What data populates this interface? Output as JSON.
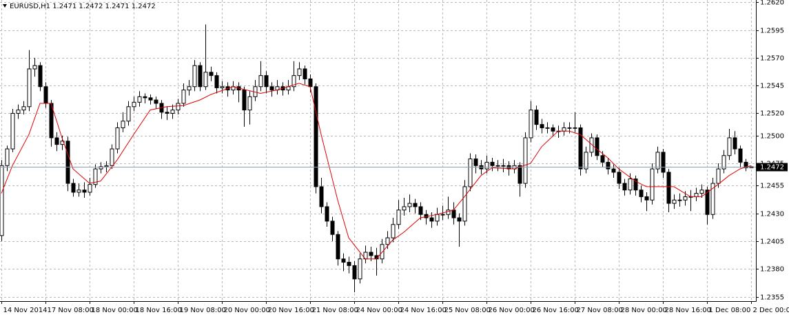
{
  "chart_data": {
    "type": "candlestick",
    "title": "EURUSD,H1  1.2471 1.2472 1.2471 1.2472",
    "up_color": "#ffffff",
    "down_color": "#000000",
    "wick_color": "#000000",
    "ma_color": "#e00000",
    "grid": true,
    "ylim": [
      1.2351,
      1.2622
    ],
    "yticks": [
      {
        "value": 1.262,
        "label": "1.2620"
      },
      {
        "value": 1.2595,
        "label": "1.2595"
      },
      {
        "value": 1.257,
        "label": "1.2570"
      },
      {
        "value": 1.2545,
        "label": "1.2545"
      },
      {
        "value": 1.252,
        "label": "1.2520"
      },
      {
        "value": 1.25,
        "label": "1.2500"
      },
      {
        "value": 1.2475,
        "label": "1.2475"
      },
      {
        "value": 1.2455,
        "label": "1.2455"
      },
      {
        "value": 1.243,
        "label": "1.2430"
      },
      {
        "value": 1.2405,
        "label": "1.2405"
      },
      {
        "value": 1.238,
        "label": "1.2380"
      },
      {
        "value": 1.2355,
        "label": "1.2355"
      }
    ],
    "current_price": {
      "value": 1.2472,
      "label": "1.2472"
    },
    "xlim": [
      -0.25,
      136.875
    ],
    "xticks": [
      {
        "value": 0,
        "label": "14 Nov 2014"
      },
      {
        "value": 8,
        "label": "17 Nov 08:00"
      },
      {
        "value": 16,
        "label": "18 Nov 00:00"
      },
      {
        "value": 24,
        "label": "18 Nov 16:00"
      },
      {
        "value": 32,
        "label": "19 Nov 08:00"
      },
      {
        "value": 40,
        "label": "20 Nov 00:00"
      },
      {
        "value": 48,
        "label": "20 Nov 16:00"
      },
      {
        "value": 56,
        "label": "21 Nov 08:00"
      },
      {
        "value": 64,
        "label": "24 Nov 00:00"
      },
      {
        "value": 72,
        "label": "24 Nov 16:00"
      },
      {
        "value": 80,
        "label": "25 Nov 08:00"
      },
      {
        "value": 88,
        "label": "26 Nov 00:00"
      },
      {
        "value": 96,
        "label": "26 Nov 16:00"
      },
      {
        "value": 104,
        "label": "27 Nov 08:00"
      },
      {
        "value": 112,
        "label": "28 Nov 00:00"
      },
      {
        "value": 120,
        "label": "28 Nov 16:00"
      },
      {
        "value": 128,
        "label": "1 Dec 08:00"
      },
      {
        "value": 136,
        "label": "2 Dec 00:00"
      }
    ],
    "candles": [
      [
        1.241,
        1.2478,
        1.2405,
        1.2473
      ],
      [
        1.2473,
        1.2491,
        1.2468,
        1.2488
      ],
      [
        1.2488,
        1.2524,
        1.2485,
        1.252
      ],
      [
        1.252,
        1.2528,
        1.2515,
        1.2523
      ],
      [
        1.2523,
        1.2531,
        1.2519,
        1.2526
      ],
      [
        1.2526,
        1.2577,
        1.2522,
        1.256
      ],
      [
        1.256,
        1.257,
        1.2553,
        1.2563
      ],
      [
        1.2563,
        1.2566,
        1.254,
        1.2544
      ],
      [
        1.2544,
        1.2548,
        1.2525,
        1.2529
      ],
      [
        1.2529,
        1.2532,
        1.249,
        1.2498
      ],
      [
        1.2498,
        1.2503,
        1.2486,
        1.2492
      ],
      [
        1.2492,
        1.25,
        1.2487,
        1.2495
      ],
      [
        1.2495,
        1.2499,
        1.245,
        1.2457
      ],
      [
        1.2457,
        1.2461,
        1.2445,
        1.2449
      ],
      [
        1.2449,
        1.2457,
        1.2445,
        1.2451
      ],
      [
        1.2451,
        1.2458,
        1.2444,
        1.2449
      ],
      [
        1.2449,
        1.2462,
        1.2446,
        1.2456
      ],
      [
        1.2456,
        1.2474,
        1.2453,
        1.247
      ],
      [
        1.247,
        1.2476,
        1.2466,
        1.2472
      ],
      [
        1.2472,
        1.2477,
        1.2467,
        1.2473
      ],
      [
        1.2473,
        1.2492,
        1.247,
        1.2488
      ],
      [
        1.2488,
        1.2512,
        1.2484,
        1.2507
      ],
      [
        1.2507,
        1.2521,
        1.2503,
        1.2513
      ],
      [
        1.2513,
        1.2531,
        1.2509,
        1.2526
      ],
      [
        1.2526,
        1.2535,
        1.2522,
        1.253
      ],
      [
        1.253,
        1.254,
        1.2526,
        1.2535
      ],
      [
        1.2535,
        1.2538,
        1.2529,
        1.2534
      ],
      [
        1.2534,
        1.2537,
        1.2528,
        1.2532
      ],
      [
        1.2532,
        1.2535,
        1.2524,
        1.2529
      ],
      [
        1.2529,
        1.2532,
        1.2515,
        1.2521
      ],
      [
        1.2521,
        1.2526,
        1.2514,
        1.252
      ],
      [
        1.252,
        1.2528,
        1.2515,
        1.2523
      ],
      [
        1.2523,
        1.2533,
        1.2519,
        1.2529
      ],
      [
        1.2529,
        1.2547,
        1.2526,
        1.2541
      ],
      [
        1.2541,
        1.255,
        1.2536,
        1.2544
      ],
      [
        1.2544,
        1.2568,
        1.254,
        1.2563
      ],
      [
        1.2563,
        1.2566,
        1.254,
        1.2544
      ],
      [
        1.2544,
        1.26,
        1.2541,
        1.2557
      ],
      [
        1.2557,
        1.2562,
        1.2549,
        1.2554
      ],
      [
        1.2554,
        1.2557,
        1.2538,
        1.2543
      ],
      [
        1.2543,
        1.2549,
        1.2538,
        1.2544
      ],
      [
        1.2544,
        1.2548,
        1.2535,
        1.2541
      ],
      [
        1.2541,
        1.2549,
        1.2537,
        1.2544
      ],
      [
        1.2544,
        1.2548,
        1.253,
        1.2541
      ],
      [
        1.2541,
        1.2544,
        1.2508,
        1.2523
      ],
      [
        1.2523,
        1.254,
        1.251,
        1.2535
      ],
      [
        1.2535,
        1.255,
        1.2531,
        1.2544
      ],
      [
        1.2544,
        1.2567,
        1.254,
        1.2554
      ],
      [
        1.2554,
        1.2558,
        1.2538,
        1.2544
      ],
      [
        1.2544,
        1.2548,
        1.2535,
        1.2541
      ],
      [
        1.2541,
        1.255,
        1.2537,
        1.2544
      ],
      [
        1.2544,
        1.2548,
        1.2536,
        1.2541
      ],
      [
        1.2541,
        1.255,
        1.2537,
        1.2544
      ],
      [
        1.2544,
        1.2567,
        1.254,
        1.2554
      ],
      [
        1.2554,
        1.2566,
        1.255,
        1.256
      ],
      [
        1.256,
        1.2563,
        1.2546,
        1.2551
      ],
      [
        1.2551,
        1.2555,
        1.2539,
        1.2544
      ],
      [
        1.2544,
        1.2547,
        1.2448,
        1.2454
      ],
      [
        1.2454,
        1.2462,
        1.243,
        1.2436
      ],
      [
        1.2436,
        1.244,
        1.2418,
        1.2423
      ],
      [
        1.2423,
        1.2427,
        1.2405,
        1.2411
      ],
      [
        1.2411,
        1.2414,
        1.2383,
        1.2389
      ],
      [
        1.2389,
        1.2394,
        1.2378,
        1.2386
      ],
      [
        1.2386,
        1.2391,
        1.2376,
        1.2383
      ],
      [
        1.2383,
        1.2387,
        1.2359,
        1.2371
      ],
      [
        1.2371,
        1.2394,
        1.2367,
        1.2389
      ],
      [
        1.2389,
        1.2401,
        1.2385,
        1.2395
      ],
      [
        1.2395,
        1.24,
        1.2387,
        1.2392
      ],
      [
        1.2392,
        1.2399,
        1.2374,
        1.2389
      ],
      [
        1.2389,
        1.2407,
        1.2385,
        1.2402
      ],
      [
        1.2402,
        1.2414,
        1.2398,
        1.2408
      ],
      [
        1.2408,
        1.2426,
        1.2404,
        1.242
      ],
      [
        1.242,
        1.2442,
        1.2416,
        1.2433
      ],
      [
        1.2433,
        1.2444,
        1.2428,
        1.2436
      ],
      [
        1.2436,
        1.2447,
        1.2431,
        1.2439
      ],
      [
        1.2439,
        1.2443,
        1.243,
        1.2436
      ],
      [
        1.2436,
        1.244,
        1.2424,
        1.2429
      ],
      [
        1.2429,
        1.2433,
        1.242,
        1.2426
      ],
      [
        1.2426,
        1.2431,
        1.2417,
        1.2423
      ],
      [
        1.2423,
        1.2435,
        1.2419,
        1.2429
      ],
      [
        1.2429,
        1.2437,
        1.2424,
        1.2429
      ],
      [
        1.2429,
        1.2445,
        1.2425,
        1.2433
      ],
      [
        1.2433,
        1.244,
        1.242,
        1.2426
      ],
      [
        1.2426,
        1.243,
        1.24,
        1.2423
      ],
      [
        1.2423,
        1.246,
        1.2419,
        1.2454
      ],
      [
        1.2454,
        1.2484,
        1.245,
        1.2479
      ],
      [
        1.2479,
        1.2483,
        1.2466,
        1.2473
      ],
      [
        1.2473,
        1.2478,
        1.2465,
        1.247
      ],
      [
        1.247,
        1.2482,
        1.2466,
        1.2476
      ],
      [
        1.2476,
        1.248,
        1.2468,
        1.2473
      ],
      [
        1.2473,
        1.2478,
        1.2468,
        1.2473
      ],
      [
        1.2473,
        1.2479,
        1.2467,
        1.2473
      ],
      [
        1.2473,
        1.2477,
        1.2464,
        1.247
      ],
      [
        1.247,
        1.2478,
        1.2466,
        1.2473
      ],
      [
        1.2473,
        1.2476,
        1.2445,
        1.2457
      ],
      [
        1.2457,
        1.2503,
        1.2453,
        1.2498
      ],
      [
        1.2498,
        1.2531,
        1.2494,
        1.2523
      ],
      [
        1.2523,
        1.2527,
        1.2505,
        1.251
      ],
      [
        1.251,
        1.2515,
        1.2502,
        1.2507
      ],
      [
        1.2507,
        1.2512,
        1.2502,
        1.2507
      ],
      [
        1.2507,
        1.251,
        1.2499,
        1.2504
      ],
      [
        1.2504,
        1.2509,
        1.2498,
        1.2504
      ],
      [
        1.2504,
        1.2512,
        1.25,
        1.2507
      ],
      [
        1.2507,
        1.2512,
        1.2502,
        1.2507
      ],
      [
        1.2507,
        1.2521,
        1.2503,
        1.2507
      ],
      [
        1.2507,
        1.251,
        1.2464,
        1.247
      ],
      [
        1.247,
        1.249,
        1.2466,
        1.2485
      ],
      [
        1.2485,
        1.2502,
        1.2481,
        1.2498
      ],
      [
        1.2498,
        1.2501,
        1.2478,
        1.2482
      ],
      [
        1.2482,
        1.2486,
        1.2472,
        1.2476
      ],
      [
        1.2476,
        1.248,
        1.2465,
        1.247
      ],
      [
        1.247,
        1.2474,
        1.2462,
        1.2467
      ],
      [
        1.2467,
        1.2471,
        1.2452,
        1.2457
      ],
      [
        1.2457,
        1.2461,
        1.2446,
        1.2451
      ],
      [
        1.2451,
        1.2466,
        1.2447,
        1.2461
      ],
      [
        1.2461,
        1.2464,
        1.2446,
        1.2451
      ],
      [
        1.2451,
        1.2455,
        1.244,
        1.2445
      ],
      [
        1.2445,
        1.2449,
        1.2432,
        1.2442
      ],
      [
        1.2442,
        1.2475,
        1.2438,
        1.247
      ],
      [
        1.247,
        1.249,
        1.2466,
        1.2485
      ],
      [
        1.2485,
        1.2488,
        1.2462,
        1.2467
      ],
      [
        1.2467,
        1.247,
        1.2431,
        1.2439
      ],
      [
        1.2439,
        1.2447,
        1.2434,
        1.2442
      ],
      [
        1.2442,
        1.2448,
        1.2436,
        1.2442
      ],
      [
        1.2442,
        1.245,
        1.2437,
        1.2445
      ],
      [
        1.2445,
        1.2451,
        1.2432,
        1.2445
      ],
      [
        1.2445,
        1.2453,
        1.2441,
        1.2448
      ],
      [
        1.2448,
        1.2456,
        1.2444,
        1.2451
      ],
      [
        1.2451,
        1.2454,
        1.242,
        1.2429
      ],
      [
        1.2429,
        1.2462,
        1.2425,
        1.2457
      ],
      [
        1.2457,
        1.2475,
        1.2453,
        1.247
      ],
      [
        1.247,
        1.2487,
        1.2466,
        1.2482
      ],
      [
        1.2482,
        1.2506,
        1.2478,
        1.2498
      ],
      [
        1.2498,
        1.2504,
        1.2483,
        1.2488
      ],
      [
        1.2488,
        1.2491,
        1.2471,
        1.2476
      ],
      [
        1.2476,
        1.2479,
        1.2468,
        1.2471
      ],
      [
        1.2471,
        1.2472,
        1.2471,
        1.2472
      ]
    ],
    "ma": {
      "x": [
        0,
        2,
        5,
        7,
        9,
        11,
        13,
        16,
        18,
        21,
        24,
        27,
        30,
        33,
        36,
        38,
        42,
        47,
        50,
        54,
        56,
        58,
        61,
        63,
        66,
        68,
        71,
        73,
        76,
        79,
        82,
        84,
        87,
        89,
        93,
        96,
        98,
        101,
        103,
        105,
        108,
        110,
        112,
        115,
        117,
        120,
        122,
        125,
        127,
        130,
        132,
        134,
        136
      ],
      "values": [
        1.2448,
        1.2473,
        1.2501,
        1.2529,
        1.2529,
        1.2498,
        1.247,
        1.2457,
        1.2459,
        1.2478,
        1.2501,
        1.2523,
        1.2526,
        1.2527,
        1.2532,
        1.2537,
        1.2544,
        1.2538,
        1.2541,
        1.2547,
        1.2544,
        1.2501,
        1.2442,
        1.2408,
        1.2389,
        1.2389,
        1.2406,
        1.2413,
        1.2426,
        1.2429,
        1.2433,
        1.2445,
        1.2464,
        1.2471,
        1.247,
        1.2475,
        1.249,
        1.2504,
        1.2504,
        1.2501,
        1.2488,
        1.248,
        1.247,
        1.2459,
        1.2454,
        1.2454,
        1.2454,
        1.2445,
        1.2445,
        1.2456,
        1.2464,
        1.247,
        1.2473
      ]
    }
  }
}
